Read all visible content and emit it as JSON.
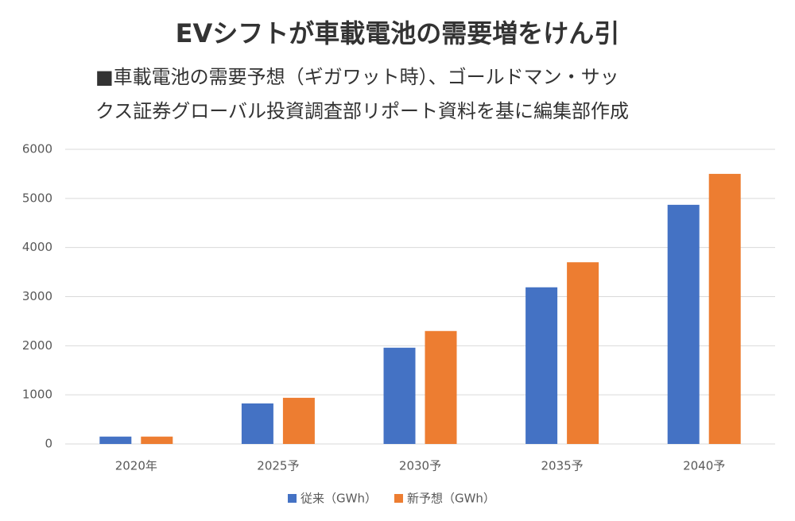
{
  "chart_data": {
    "type": "bar",
    "title": "EVシフトが車載電池の需要増をけん引",
    "subtitle": [
      "■車載電池の需要予想（ギガワット時）、ゴールドマン・サッ",
      "クス証券グローバル投資調査部リポート資料を基に編集部作成"
    ],
    "categories": [
      "2020年",
      "2025予",
      "2030予",
      "2035予",
      "2040予"
    ],
    "series": [
      {
        "name": "従来（GWh）",
        "color": "#4472c4",
        "values": [
          150,
          825,
          1960,
          3190,
          4870
        ]
      },
      {
        "name": "新予想（GWh）",
        "color": "#ed7d31",
        "values": [
          150,
          940,
          2300,
          3700,
          5500
        ]
      }
    ],
    "ylim": [
      0,
      6000
    ],
    "yticks": [
      0,
      1000,
      2000,
      3000,
      4000,
      5000,
      6000
    ],
    "grid": true,
    "legend": "bottom"
  }
}
